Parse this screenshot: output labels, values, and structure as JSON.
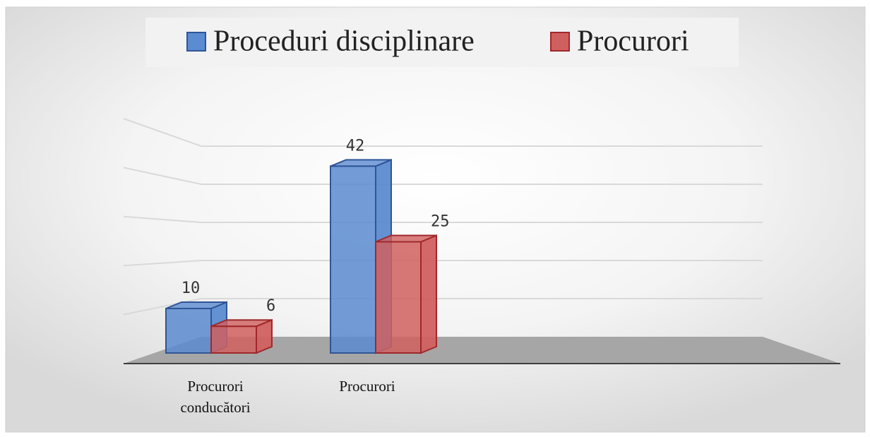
{
  "chart_data": {
    "type": "bar3d",
    "categories": [
      "Procurori conducători",
      "Procurori"
    ],
    "series": [
      {
        "name": "Proceduri disciplinare",
        "color": "#5b8bd0",
        "values": [
          10,
          42
        ]
      },
      {
        "name": "Procurori",
        "color": "#d0605f",
        "values": [
          6,
          25
        ]
      }
    ],
    "ylim": [
      0,
      50
    ],
    "yticks": [
      0,
      10,
      20,
      30,
      40,
      50
    ],
    "grid": true,
    "legend": "top"
  }
}
